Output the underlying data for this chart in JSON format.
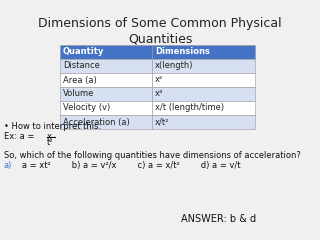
{
  "title": "Dimensions of Some Common Physical\nQuantities",
  "table_header": [
    "Quantity",
    "Dimensions"
  ],
  "table_rows": [
    [
      "Distance",
      "x(length)"
    ],
    [
      "Area (a)",
      "x²"
    ],
    [
      "Volume",
      "x³"
    ],
    [
      "Velocity (v)",
      "x/t (length/time)"
    ],
    [
      "Acceleration (a)",
      "x/t²"
    ]
  ],
  "header_bg": "#4472C4",
  "row_light_bg": "#D6E0F0",
  "row_white_bg": "#FFFFFF",
  "header_text_color": "#FFFFFF",
  "row_text_color": "#222222",
  "title_color": "#222222",
  "bullet_text": "• How to interpret this:",
  "ex_text": "Ex: a = x",
  "ex_denom": "         t²",
  "question": "So, which of the following quantities have dimensions of acceleration?",
  "choice_a_label": "a)",
  "choice_rest": "   a = xt²        b) a = v²/x        c) a = x/t²        d) a = v/t",
  "answer": "ANSWER: b & d",
  "bg_color": "#F0F0F0"
}
